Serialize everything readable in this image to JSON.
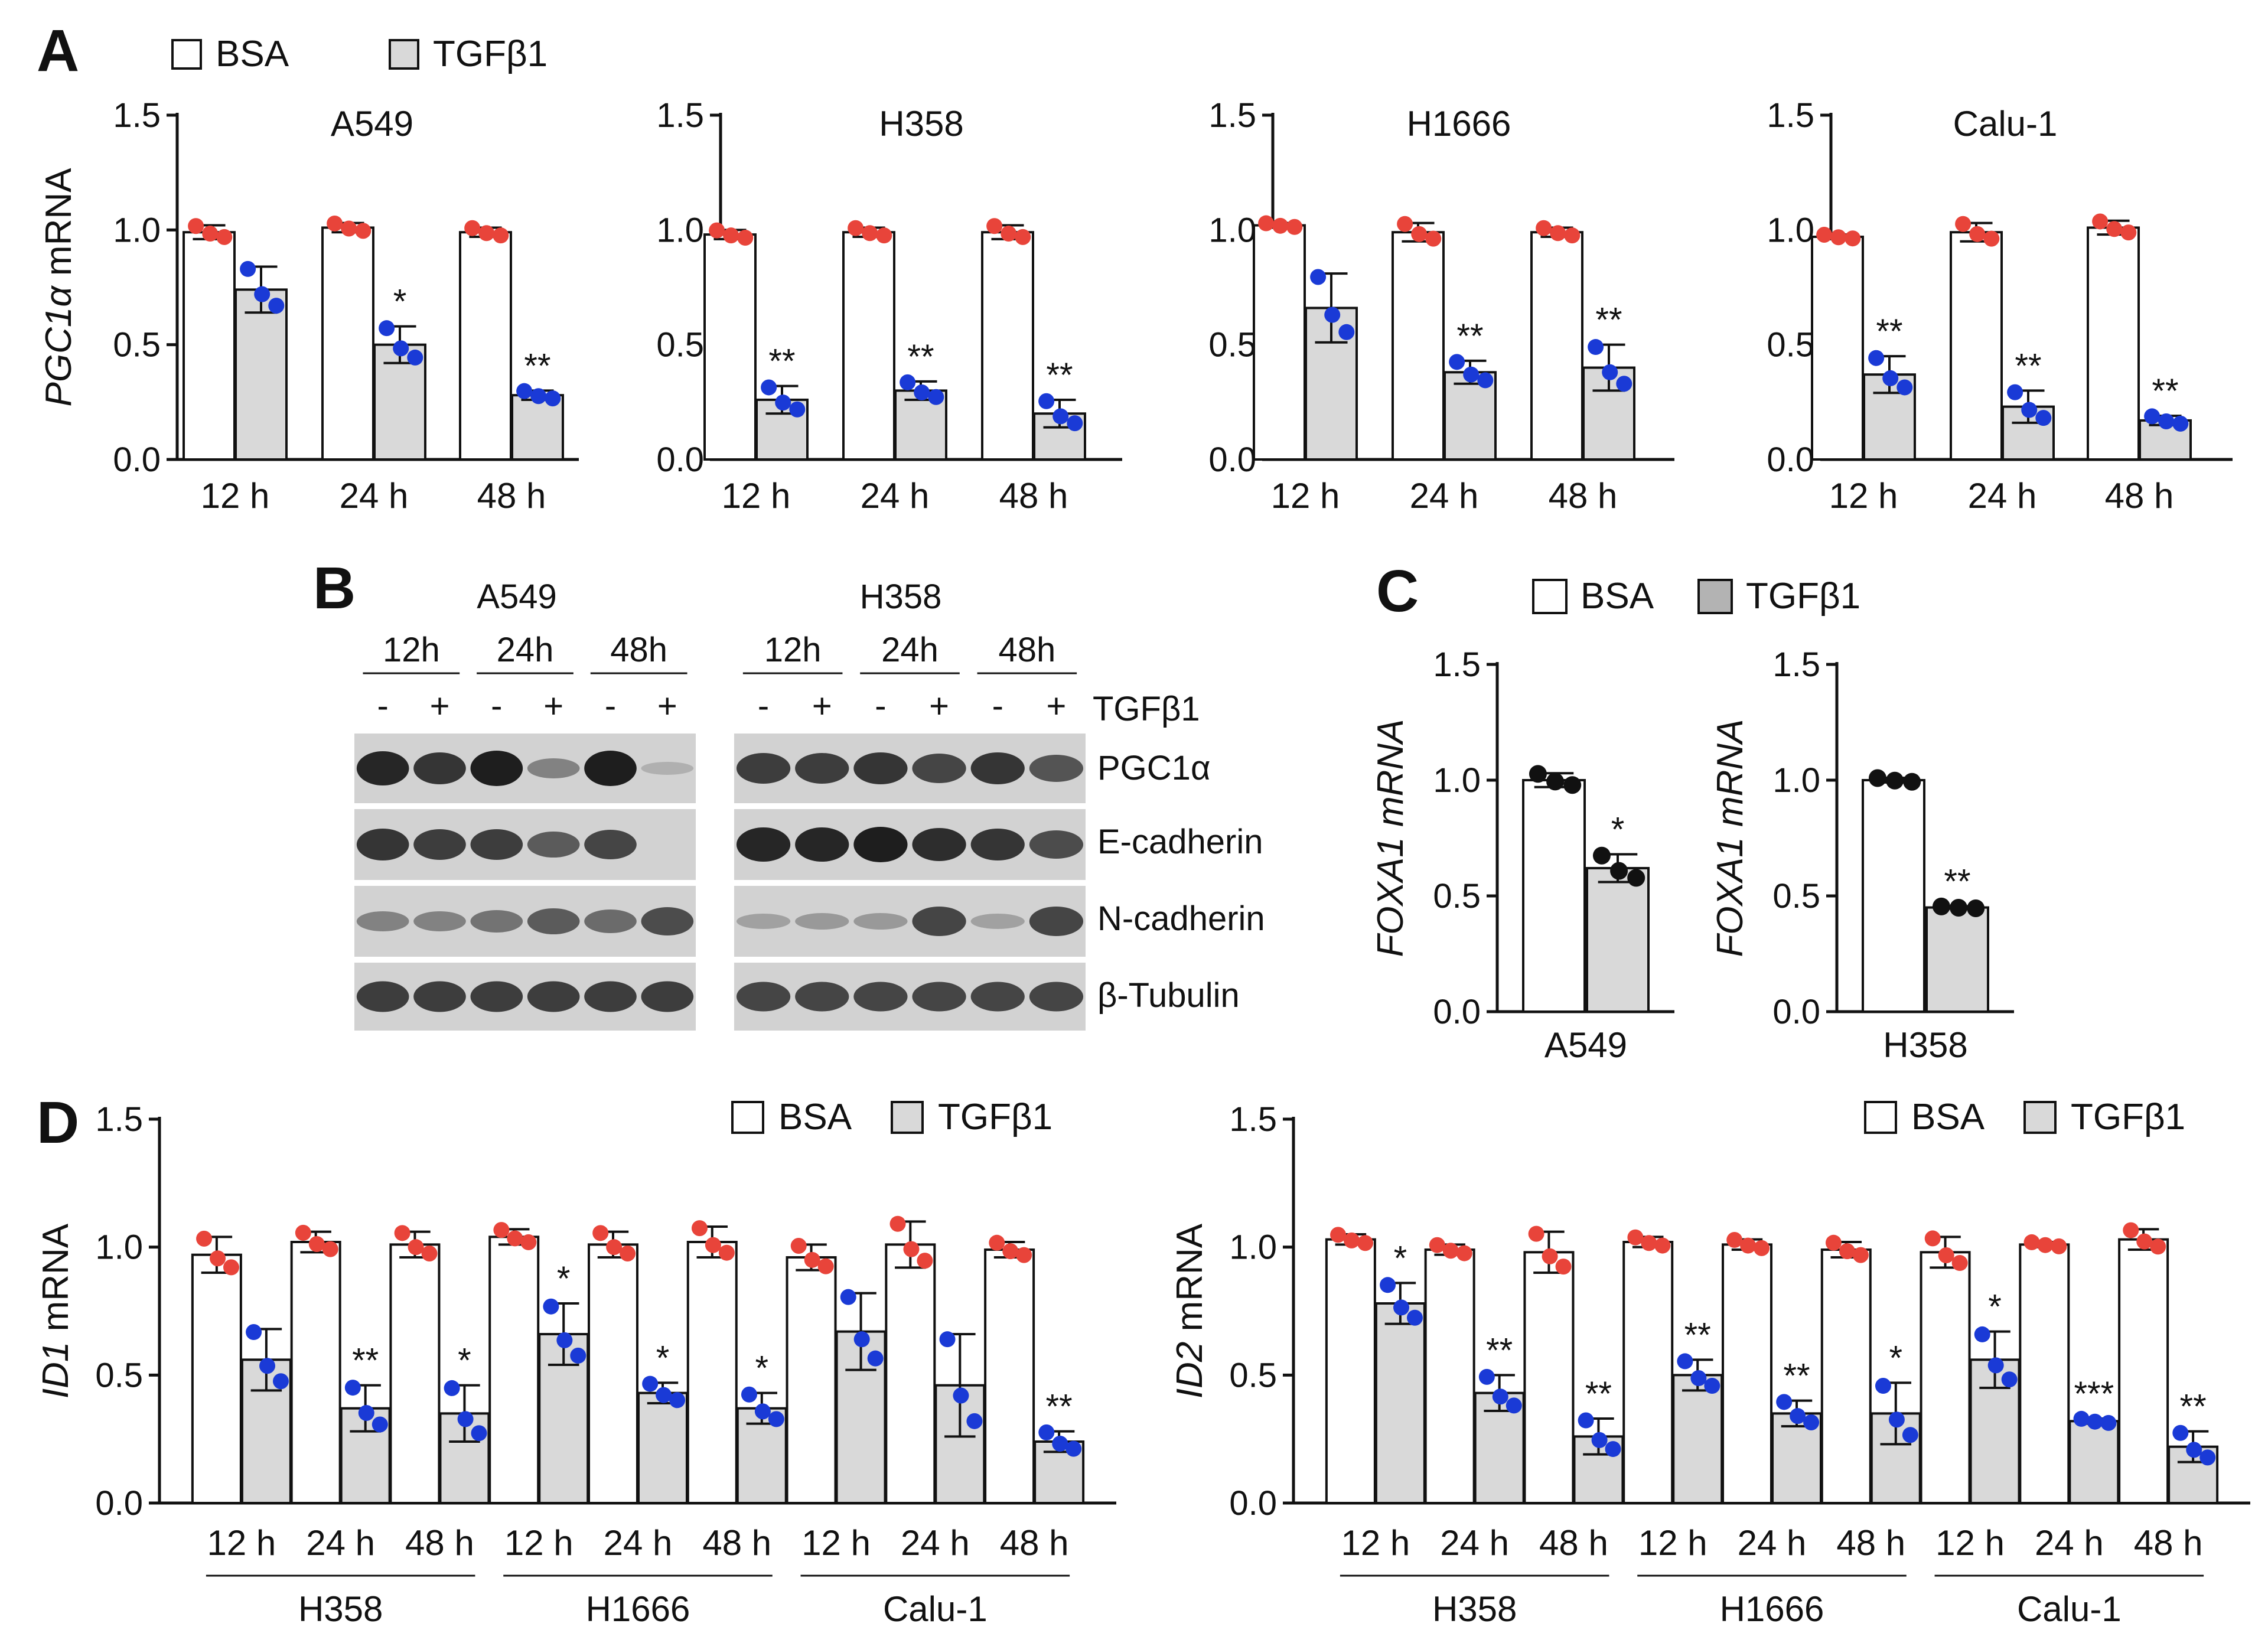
{
  "panels": {
    "A": "A",
    "B": "B",
    "C": "C",
    "D": "D"
  },
  "legend": {
    "bsa": "BSA",
    "tgf": "TGFβ1"
  },
  "colors": {
    "bsa_fill": "#ffffff",
    "tgf_fill": "#d9d9d9",
    "tgf_fill_dark": "#b3b3b3",
    "dot_bsa": "#e8443a",
    "dot_tgf": "#1a3ad6",
    "dot_black": "#111111"
  },
  "chart_data": [
    {
      "id": "A-A549",
      "type": "bar",
      "title": "A549",
      "ylabel": "PGC1α mRNA",
      "ylabel_italic": "PGC1α",
      "ylabel_rest": " mRNA",
      "ylim": [
        0,
        1.5
      ],
      "yticks": [
        "0.0",
        "0.5",
        "1.0",
        "1.5"
      ],
      "categories": [
        "12 h",
        "24 h",
        "48 h"
      ],
      "series": [
        {
          "name": "BSA",
          "values": [
            0.99,
            1.01,
            0.99
          ],
          "err": [
            0.03,
            0.02,
            0.02
          ]
        },
        {
          "name": "TGFβ1",
          "values": [
            0.74,
            0.5,
            0.28
          ],
          "err": [
            0.1,
            0.08,
            0.02
          ]
        }
      ],
      "annotations": [
        "",
        "*",
        "**"
      ]
    },
    {
      "id": "A-H358",
      "type": "bar",
      "title": "H358",
      "ylim": [
        0,
        1.5
      ],
      "yticks": [
        "0.0",
        "0.5",
        "1.0",
        "1.5"
      ],
      "categories": [
        "12 h",
        "24 h",
        "48 h"
      ],
      "series": [
        {
          "name": "BSA",
          "values": [
            0.98,
            0.99,
            0.99
          ],
          "err": [
            0.02,
            0.02,
            0.03
          ]
        },
        {
          "name": "TGFβ1",
          "values": [
            0.26,
            0.3,
            0.2
          ],
          "err": [
            0.06,
            0.04,
            0.06
          ]
        }
      ],
      "annotations": [
        "**",
        "**",
        "**"
      ]
    },
    {
      "id": "A-H1666",
      "type": "bar",
      "title": "H1666",
      "ylim": [
        0,
        1.5
      ],
      "yticks": [
        "0.0",
        "0.5",
        "1.0",
        "1.5"
      ],
      "categories": [
        "12 h",
        "24 h",
        "48 h"
      ],
      "series": [
        {
          "name": "BSA",
          "values": [
            1.02,
            0.99,
            0.99
          ],
          "err": [
            0.01,
            0.04,
            0.02
          ]
        },
        {
          "name": "TGFβ1",
          "values": [
            0.66,
            0.38,
            0.4
          ],
          "err": [
            0.15,
            0.05,
            0.1
          ]
        }
      ],
      "annotations": [
        "",
        "**",
        "**"
      ]
    },
    {
      "id": "A-Calu1",
      "type": "bar",
      "title": "Calu-1",
      "ylim": [
        0,
        1.5
      ],
      "yticks": [
        "0.0",
        "0.5",
        "1.0",
        "1.5"
      ],
      "categories": [
        "12 h",
        "24 h",
        "48 h"
      ],
      "series": [
        {
          "name": "BSA",
          "values": [
            0.97,
            0.99,
            1.01
          ],
          "err": [
            0.01,
            0.04,
            0.03
          ]
        },
        {
          "name": "TGFβ1",
          "values": [
            0.37,
            0.23,
            0.17
          ],
          "err": [
            0.08,
            0.07,
            0.02
          ]
        }
      ],
      "annotations": [
        "**",
        "**",
        "**"
      ]
    },
    {
      "id": "C-A549",
      "type": "bar",
      "xlabel": "A549",
      "ylabel": "FOXA1 mRNA",
      "ylim": [
        0,
        1.5
      ],
      "yticks": [
        "0.0",
        "0.5",
        "1.0",
        "1.5"
      ],
      "series": [
        {
          "name": "BSA",
          "values": [
            1.0
          ],
          "err": [
            0.03
          ]
        },
        {
          "name": "TGFβ1",
          "values": [
            0.62
          ],
          "err": [
            0.06
          ]
        }
      ],
      "annotations": [
        "*"
      ]
    },
    {
      "id": "C-H358",
      "type": "bar",
      "xlabel": "H358",
      "ylabel": "FOXA1 mRNA",
      "ylim": [
        0,
        1.5
      ],
      "yticks": [
        "0.0",
        "0.5",
        "1.0",
        "1.5"
      ],
      "series": [
        {
          "name": "BSA",
          "values": [
            1.0
          ],
          "err": [
            0.01
          ]
        },
        {
          "name": "TGFβ1",
          "values": [
            0.45
          ],
          "err": [
            0.005
          ]
        }
      ],
      "annotations": [
        "**"
      ]
    },
    {
      "id": "D-ID1",
      "type": "bar",
      "ylabel": "ID1 mRNA",
      "ylabel_italic": "ID1",
      "ylabel_rest": " mRNA",
      "ylim": [
        0,
        1.5
      ],
      "yticks": [
        "0.0",
        "0.5",
        "1.0",
        "1.5"
      ],
      "categories": [
        "12 h",
        "24 h",
        "48 h",
        "12 h",
        "24 h",
        "48 h",
        "12 h",
        "24 h",
        "48 h"
      ],
      "groups": [
        "H358",
        "H1666",
        "Calu-1"
      ],
      "series": [
        {
          "name": "BSA",
          "values": [
            0.97,
            1.02,
            1.01,
            1.04,
            1.01,
            1.02,
            0.96,
            1.01,
            0.99
          ],
          "err": [
            0.07,
            0.04,
            0.05,
            0.03,
            0.05,
            0.06,
            0.05,
            0.09,
            0.03
          ]
        },
        {
          "name": "TGFβ1",
          "values": [
            0.56,
            0.37,
            0.35,
            0.66,
            0.43,
            0.37,
            0.67,
            0.46,
            0.24
          ],
          "err": [
            0.12,
            0.09,
            0.11,
            0.12,
            0.04,
            0.06,
            0.15,
            0.2,
            0.04
          ]
        }
      ],
      "annotations": [
        "",
        "**",
        "*",
        "*",
        "*",
        "*",
        "",
        "",
        "**"
      ]
    },
    {
      "id": "D-ID2",
      "type": "bar",
      "ylabel": "ID2 mRNA",
      "ylabel_italic": "ID2",
      "ylabel_rest": " mRNA",
      "ylim": [
        0,
        1.5
      ],
      "yticks": [
        "0.0",
        "0.5",
        "1.0",
        "1.5"
      ],
      "categories": [
        "12 h",
        "24 h",
        "48 h",
        "12 h",
        "24 h",
        "48 h",
        "12 h",
        "24 h",
        "48 h"
      ],
      "groups": [
        "H358",
        "H1666",
        "Calu-1"
      ],
      "series": [
        {
          "name": "BSA",
          "values": [
            1.03,
            0.99,
            0.98,
            1.02,
            1.01,
            0.99,
            0.98,
            1.01,
            1.03
          ],
          "err": [
            0.02,
            0.02,
            0.08,
            0.02,
            0.02,
            0.03,
            0.06,
            0.01,
            0.04
          ]
        },
        {
          "name": "TGFβ1",
          "values": [
            0.78,
            0.43,
            0.26,
            0.5,
            0.35,
            0.35,
            0.56,
            0.32,
            0.22
          ],
          "err": [
            0.08,
            0.07,
            0.07,
            0.06,
            0.05,
            0.12,
            0.11,
            0.01,
            0.06
          ]
        }
      ],
      "annotations": [
        "*",
        "**",
        "**",
        "**",
        "**",
        "*",
        "*",
        "***",
        "**"
      ]
    }
  ],
  "blot": {
    "groups": [
      {
        "title": "A549",
        "times": [
          "12h",
          "24h",
          "48h"
        ],
        "signs": [
          "-",
          "+",
          "-",
          "+",
          "-",
          "+"
        ]
      },
      {
        "title": "H358",
        "times": [
          "12h",
          "24h",
          "48h"
        ],
        "signs": [
          "-",
          "+",
          "-",
          "+",
          "-",
          "+"
        ]
      }
    ],
    "treatment_label": "TGFβ1",
    "rows": [
      "PGC1α",
      "E-cadherin",
      "N-cadherin",
      "β-Tubulin"
    ],
    "intensities": {
      "A549": [
        [
          0.95,
          0.85,
          1.0,
          0.35,
          1.0,
          0.05
        ],
        [
          0.85,
          0.8,
          0.8,
          0.6,
          0.75,
          0.0
        ],
        [
          0.35,
          0.35,
          0.45,
          0.6,
          0.5,
          0.7
        ],
        [
          0.8,
          0.8,
          0.8,
          0.8,
          0.8,
          0.8
        ]
      ],
      "H358": [
        [
          0.8,
          0.8,
          0.85,
          0.75,
          0.85,
          0.65
        ],
        [
          0.95,
          0.95,
          1.0,
          0.9,
          0.85,
          0.7
        ],
        [
          0.15,
          0.2,
          0.2,
          0.75,
          0.15,
          0.75
        ],
        [
          0.75,
          0.75,
          0.75,
          0.75,
          0.75,
          0.75
        ]
      ]
    }
  }
}
